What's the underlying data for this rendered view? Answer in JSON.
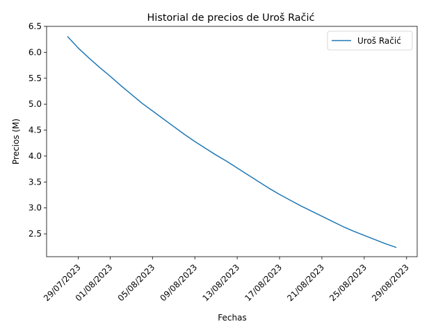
{
  "chart_data": {
    "type": "line",
    "title": "Historial de precios de Uroš Račić",
    "xlabel": "Fechas",
    "ylabel": "Precios (M)",
    "x_tick_labels": [
      "29/07/2023",
      "01/08/2023",
      "05/08/2023",
      "09/08/2023",
      "13/08/2023",
      "17/08/2023",
      "21/08/2023",
      "25/08/2023",
      "29/08/2023"
    ],
    "x_tick_dates": [
      "2023-07-29",
      "2023-08-01",
      "2023-08-05",
      "2023-08-09",
      "2023-08-13",
      "2023-08-17",
      "2023-08-21",
      "2023-08-25",
      "2023-08-29"
    ],
    "xlim": [
      "2023-07-26",
      "2023-08-30"
    ],
    "ylim": [
      2.06,
      6.5
    ],
    "y_ticks": [
      2.5,
      3.0,
      3.5,
      4.0,
      4.5,
      5.0,
      5.5,
      6.0,
      6.5
    ],
    "y_tick_labels": [
      "2.5",
      "3.0",
      "3.5",
      "4.0",
      "4.5",
      "5.0",
      "5.5",
      "6.0",
      "6.5"
    ],
    "legend_position": "top-right",
    "grid": false,
    "series": [
      {
        "name": "Uroš Račić",
        "color": "#1f77b4",
        "x": [
          "2023-07-28",
          "2023-07-29",
          "2023-07-30",
          "2023-07-31",
          "2023-08-01",
          "2023-08-02",
          "2023-08-03",
          "2023-08-04",
          "2023-08-05",
          "2023-08-06",
          "2023-08-07",
          "2023-08-08",
          "2023-08-09",
          "2023-08-10",
          "2023-08-11",
          "2023-08-12",
          "2023-08-13",
          "2023-08-14",
          "2023-08-15",
          "2023-08-16",
          "2023-08-17",
          "2023-08-18",
          "2023-08-19",
          "2023-08-20",
          "2023-08-21",
          "2023-08-22",
          "2023-08-23",
          "2023-08-24",
          "2023-08-25",
          "2023-08-26",
          "2023-08-27",
          "2023-08-28"
        ],
        "values": [
          6.3,
          6.08,
          5.89,
          5.71,
          5.54,
          5.36,
          5.19,
          5.02,
          4.87,
          4.72,
          4.57,
          4.42,
          4.28,
          4.15,
          4.02,
          3.9,
          3.77,
          3.64,
          3.51,
          3.38,
          3.26,
          3.15,
          3.04,
          2.94,
          2.84,
          2.74,
          2.64,
          2.55,
          2.47,
          2.39,
          2.31,
          2.24
        ]
      }
    ]
  }
}
